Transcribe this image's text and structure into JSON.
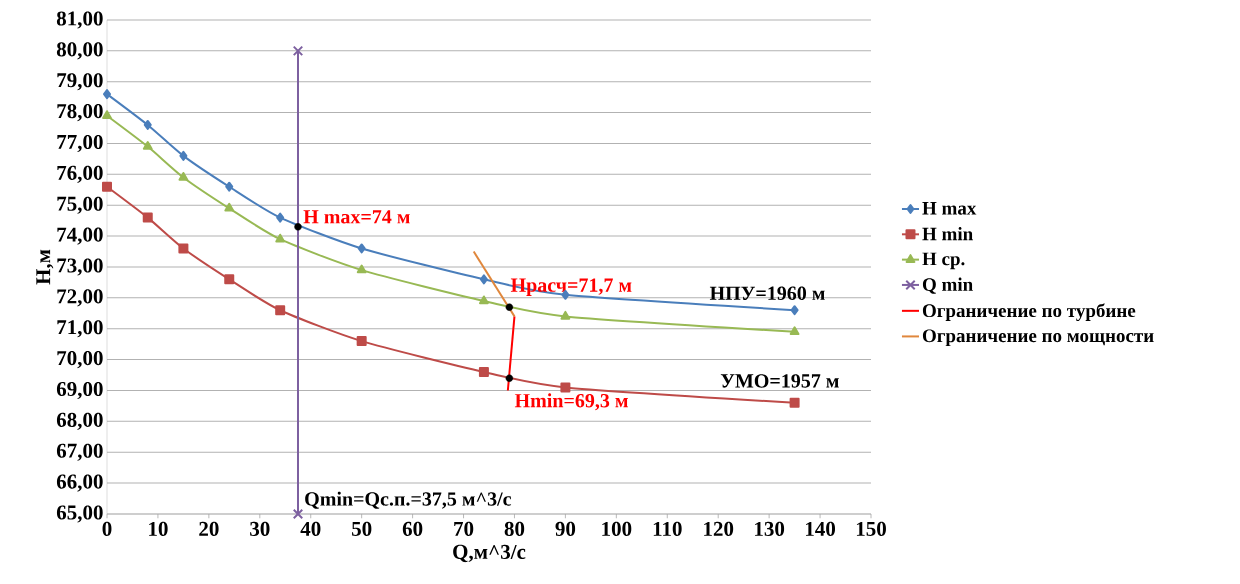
{
  "chart_data": {
    "type": "line",
    "xlabel": "Q,м^3/с",
    "ylabel": "H,м",
    "x": [
      0,
      8,
      15,
      24,
      34,
      50,
      74,
      90,
      135
    ],
    "series": [
      {
        "name": "H max",
        "color": "#4a7ebb",
        "marker": "diamond",
        "values": [
          78.6,
          77.6,
          76.6,
          75.6,
          74.6,
          73.6,
          72.6,
          72.1,
          71.6
        ]
      },
      {
        "name": "H min",
        "color": "#be4b48",
        "marker": "square",
        "values": [
          75.6,
          74.6,
          73.6,
          72.6,
          71.6,
          70.6,
          69.6,
          69.1,
          68.6
        ]
      },
      {
        "name": "H ср.",
        "color": "#98b954",
        "marker": "triangle",
        "values": [
          77.9,
          76.9,
          75.9,
          74.9,
          73.9,
          72.9,
          71.9,
          71.4,
          70.9
        ]
      },
      {
        "name": "Q min",
        "color": "#7d60a0",
        "marker": "cross",
        "x": [
          37.5,
          37.5
        ],
        "values": [
          65,
          80
        ]
      },
      {
        "name": "Ограничение по турбине",
        "color": "#ff0000",
        "marker": "none",
        "x": [
          80,
          78.7
        ],
        "values": [
          71.4,
          69.0
        ]
      },
      {
        "name": "Ограничение по мощности",
        "color": "#e0873c",
        "marker": "none",
        "x": [
          72,
          80
        ],
        "values": [
          73.5,
          71.4
        ]
      },
      {
        "type": "scatter",
        "color": "#000000",
        "marker": "circle",
        "x": [
          37.5,
          79,
          79
        ],
        "values": [
          74.3,
          71.7,
          69.4
        ]
      }
    ],
    "annotations": [
      {
        "text": "H max=74 м",
        "x": 37.5,
        "y": 74.3
      },
      {
        "text": "Нрасч=71,7 м",
        "x": 79,
        "y": 71.7
      },
      {
        "text": "Hmin=69,3 м",
        "x": 79,
        "y": 69.4
      },
      {
        "text": "НПУ=1960 м",
        "x": 135,
        "y": 71.6
      },
      {
        "text": "УМО=1957 м",
        "x": 135,
        "y": 68.6
      },
      {
        "text": "Qmin=Qс.п.=37,5 м^3/с",
        "x": 37.5,
        "y": 65
      }
    ],
    "xlim": [
      0,
      150
    ],
    "xticks": [
      0,
      10,
      20,
      30,
      40,
      50,
      60,
      70,
      80,
      90,
      100,
      110,
      120,
      130,
      140,
      150
    ],
    "ylim": [
      65,
      81
    ],
    "yticks": [
      {
        "value": 65,
        "label": "65,00"
      },
      {
        "value": 66,
        "label": "66,00"
      },
      {
        "value": 67,
        "label": "67,00"
      },
      {
        "value": 68,
        "label": "68,00"
      },
      {
        "value": 69,
        "label": "69,00"
      },
      {
        "value": 70,
        "label": "70,00"
      },
      {
        "value": 71,
        "label": "71,00"
      },
      {
        "value": 72,
        "label": "72,00"
      },
      {
        "value": 73,
        "label": "73,00"
      },
      {
        "value": 74,
        "label": "74,00"
      },
      {
        "value": 75,
        "label": "75,00"
      },
      {
        "value": 76,
        "label": "76,00"
      },
      {
        "value": 77,
        "label": "77,00"
      },
      {
        "value": 78,
        "label": "78,00"
      },
      {
        "value": 79,
        "label": "79,00"
      },
      {
        "value": 80,
        "label": "80,00"
      },
      {
        "value": 81,
        "label": "81,00"
      }
    ],
    "grid": "y",
    "legend": "right"
  }
}
